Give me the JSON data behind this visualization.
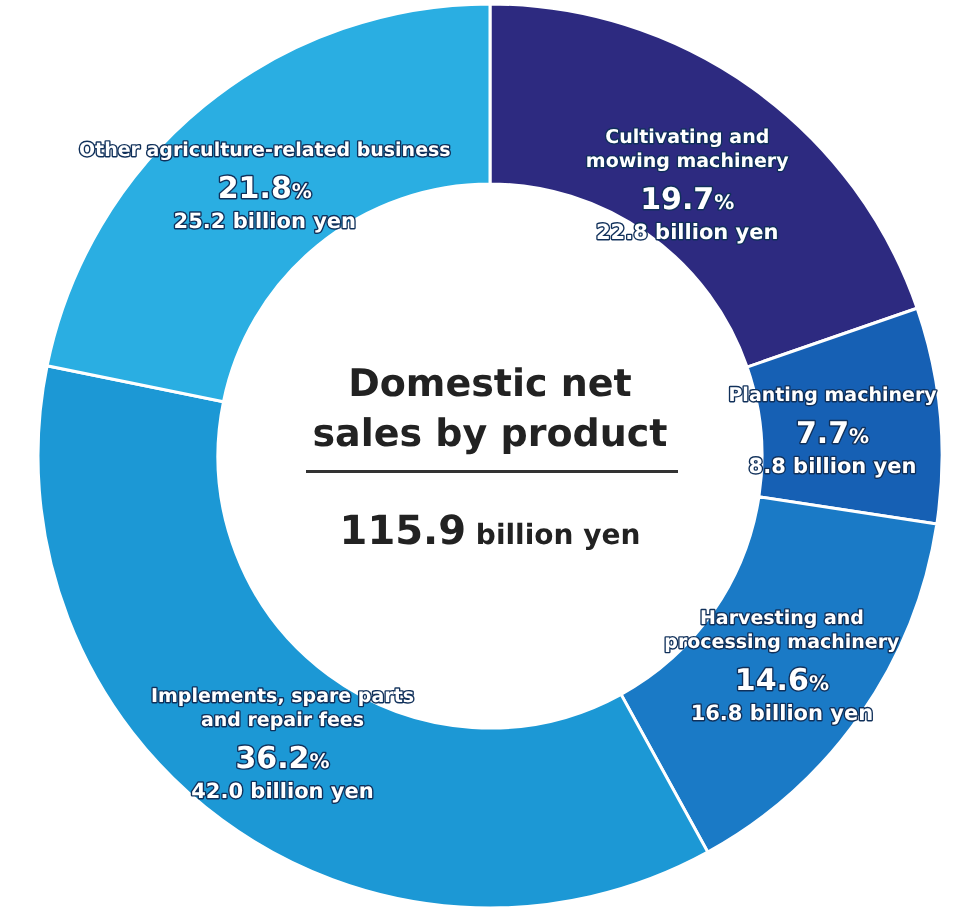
{
  "chart_data": {
    "type": "donut",
    "title": "Domestic net sales by product",
    "subtitle": "115.9 billion yen",
    "categories": [
      "Cultivating and mowing machinery",
      "Planting machinery",
      "Harvesting and processing machinery",
      "Implements, spare parts and repair fees",
      "Other agriculture-related business"
    ],
    "values": [
      19.7,
      7.7,
      14.6,
      36.2,
      21.8
    ],
    "value_labels": [
      "19.7%",
      "7.7%",
      "14.6%",
      "36.2%",
      "21.8%"
    ],
    "colors": [
      "#2d2a80",
      "#1660b4",
      "#1a7ac6",
      "#1c98d5",
      "#2aaee2"
    ],
    "annotations": [
      {
        "text": "22.8 billion yen",
        "x": "Cultivating and mowing machinery"
      },
      {
        "text": "8.8 billion yen",
        "x": "Planting machinery"
      },
      {
        "text": "16.8 billion yen",
        "x": "Harvesting and processing machinery"
      },
      {
        "text": "42.0 billion yen",
        "x": "Implements, spare parts and repair fees"
      },
      {
        "text": "25.2 billion yen",
        "x": "Other agriculture-related business"
      }
    ]
  }
}
